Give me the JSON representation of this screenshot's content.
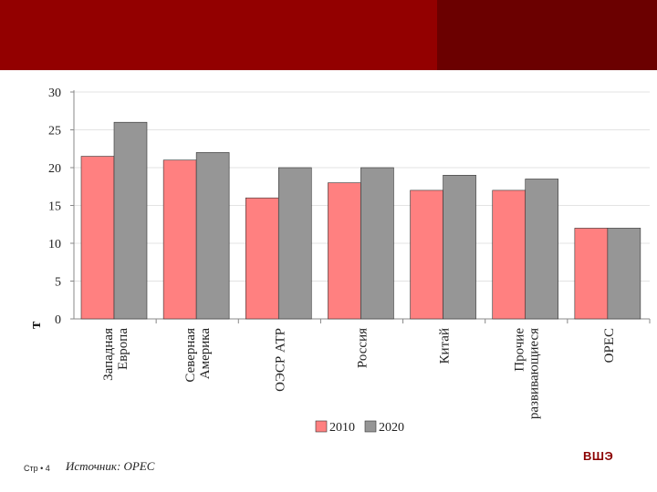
{
  "header": {
    "colors": {
      "banner": "#930000",
      "banner_dark": "#6b0000"
    }
  },
  "chart_data": {
    "type": "bar",
    "categories": [
      "Западная Европа",
      "Северная Америка",
      "ОЭСР АТР",
      "Россия",
      "Китай",
      "Прочие развивающиеся",
      "OPEC"
    ],
    "category_lines": [
      [
        "Западная",
        "Европа"
      ],
      [
        "Северная",
        "Америка"
      ],
      [
        "ОЭСР АТР"
      ],
      [
        "Россия"
      ],
      [
        "Китай"
      ],
      [
        "Прочие",
        "развивающиеся"
      ],
      [
        "OPEC"
      ]
    ],
    "series": [
      {
        "name": "2010",
        "values": [
          21.5,
          21,
          16,
          18,
          17,
          17,
          12
        ],
        "color": "#ff8080"
      },
      {
        "name": "2020",
        "values": [
          26,
          22,
          20,
          20,
          19,
          18.5,
          12
        ],
        "color": "#969696"
      }
    ],
    "ylabel": "т",
    "ylim": [
      0,
      30
    ],
    "yticks": [
      "0",
      "5",
      "10",
      "15",
      "20",
      "25",
      "30"
    ],
    "grid": true,
    "legend": "bottom-right"
  },
  "footer": {
    "page": "Стр • 4",
    "source": "Источник: OPEC",
    "logo": "ВШЭ"
  }
}
